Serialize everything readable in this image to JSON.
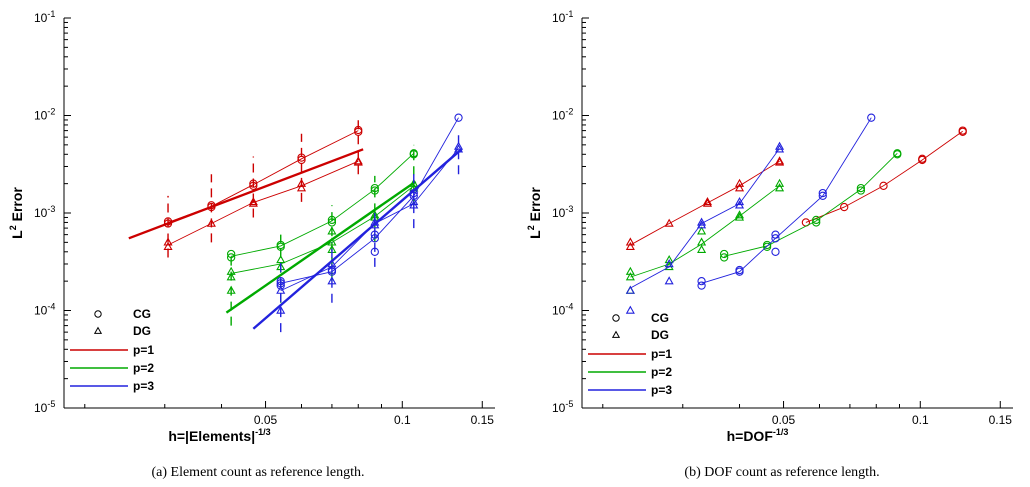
{
  "chart_data": [
    {
      "type": "scatter",
      "caption": "(a)  Element count as reference length.",
      "xlabel": "h=|Elements|",
      "xlabel_sup": "-1/3",
      "ylabel": "L",
      "ylabel_sup": "2",
      "ylabel_rest": " Error",
      "x_scale": "log",
      "y_scale": "log",
      "xlim": [
        0.018,
        0.16
      ],
      "ylim": [
        1e-05,
        0.1
      ],
      "x_ticks": [
        {
          "v": 0.05,
          "label": "0.05"
        },
        {
          "v": 0.1,
          "label": "0.1"
        },
        {
          "v": 0.15,
          "label": "0.15"
        }
      ],
      "y_ticks": [
        {
          "v": 0.1,
          "base": "10",
          "exp": "-1"
        },
        {
          "v": 0.01,
          "base": "10",
          "exp": "-2"
        },
        {
          "v": 0.001,
          "base": "10",
          "exp": "-3"
        },
        {
          "v": 0.0001,
          "base": "10",
          "exp": "-4"
        },
        {
          "v": 1e-05,
          "base": "10",
          "exp": "-5"
        }
      ],
      "legend": {
        "position": "bottom-left",
        "markers": [
          {
            "symbol": "circle",
            "label": "CG"
          },
          {
            "symbol": "triangle",
            "label": "DG"
          }
        ],
        "lines": [
          {
            "label": "p=1",
            "color": "#cc0000"
          },
          {
            "label": "p=2",
            "color": "#00aa00"
          },
          {
            "label": "p=3",
            "color": "#2222dd"
          }
        ]
      },
      "series": [
        {
          "p": 1,
          "color": "#cc0000",
          "fit": [
            [
              0.025,
              0.00055
            ],
            [
              0.082,
              0.0045
            ]
          ],
          "cg": [
            [
              0.0305,
              0.00082
            ],
            [
              0.0305,
              0.00078
            ],
            [
              0.038,
              0.00115
            ],
            [
              0.038,
              0.0012
            ],
            [
              0.047,
              0.0019
            ],
            [
              0.047,
              0.002
            ],
            [
              0.06,
              0.0035
            ],
            [
              0.06,
              0.0037
            ],
            [
              0.08,
              0.0068
            ],
            [
              0.08,
              0.0071
            ]
          ],
          "dg": [
            [
              0.0305,
              0.00045
            ],
            [
              0.0305,
              0.0005
            ],
            [
              0.038,
              0.00078
            ],
            [
              0.047,
              0.0013
            ],
            [
              0.047,
              0.00125
            ],
            [
              0.06,
              0.002
            ],
            [
              0.06,
              0.0018
            ],
            [
              0.08,
              0.0034
            ],
            [
              0.08,
              0.0033
            ]
          ],
          "cg_curve": [
            [
              0.0305,
              0.0008
            ],
            [
              0.038,
              0.00117
            ],
            [
              0.047,
              0.00195
            ],
            [
              0.06,
              0.0036
            ],
            [
              0.08,
              0.007
            ]
          ],
          "dg_curve": [
            [
              0.0305,
              0.00047
            ],
            [
              0.038,
              0.00078
            ],
            [
              0.047,
              0.00128
            ],
            [
              0.06,
              0.0019
            ],
            [
              0.08,
              0.0034
            ]
          ],
          "whiskers": [
            [
              0.0305,
              0.00035,
              0.0015
            ],
            [
              0.038,
              0.0005,
              0.0025
            ],
            [
              0.047,
              0.0009,
              0.0038
            ],
            [
              0.06,
              0.0013,
              0.0065
            ],
            [
              0.08,
              0.0025,
              0.01
            ]
          ]
        },
        {
          "p": 2,
          "color": "#00aa00",
          "fit": [
            [
              0.041,
              9.5e-05
            ],
            [
              0.107,
              0.0021
            ]
          ],
          "cg": [
            [
              0.042,
              0.00038
            ],
            [
              0.042,
              0.00035
            ],
            [
              0.054,
              0.00045
            ],
            [
              0.054,
              0.00047
            ],
            [
              0.07,
              0.00085
            ],
            [
              0.07,
              0.0008
            ],
            [
              0.087,
              0.0017
            ],
            [
              0.087,
              0.0018
            ],
            [
              0.106,
              0.0041
            ],
            [
              0.106,
              0.004
            ]
          ],
          "dg": [
            [
              0.042,
              0.00025
            ],
            [
              0.042,
              0.00022
            ],
            [
              0.042,
              0.00016
            ],
            [
              0.054,
              0.00033
            ],
            [
              0.054,
              0.00028
            ],
            [
              0.07,
              0.00065
            ],
            [
              0.07,
              0.0005
            ],
            [
              0.07,
              0.00042
            ],
            [
              0.087,
              0.0009
            ],
            [
              0.087,
              0.00095
            ],
            [
              0.106,
              0.002
            ],
            [
              0.106,
              0.0018
            ]
          ],
          "cg_curve": [
            [
              0.042,
              0.00036
            ],
            [
              0.054,
              0.00046
            ],
            [
              0.07,
              0.00083
            ],
            [
              0.087,
              0.00175
            ],
            [
              0.106,
              0.0041
            ]
          ],
          "dg_curve": [
            [
              0.042,
              0.00024
            ],
            [
              0.054,
              0.0003
            ],
            [
              0.07,
              0.0005
            ],
            [
              0.087,
              0.00092
            ],
            [
              0.106,
              0.0019
            ]
          ],
          "whiskers": [
            [
              0.042,
              7e-05,
              0.0004
            ],
            [
              0.054,
              0.00012,
              0.0006
            ],
            [
              0.07,
              0.0002,
              0.0012
            ],
            [
              0.087,
              0.0005,
              0.0024
            ],
            [
              0.106,
              0.0012,
              0.005
            ]
          ]
        },
        {
          "p": 3,
          "color": "#2222dd",
          "fit": [
            [
              0.047,
              6.5e-05
            ],
            [
              0.135,
              0.0045
            ]
          ],
          "cg": [
            [
              0.054,
              0.0002
            ],
            [
              0.054,
              0.00019
            ],
            [
              0.054,
              0.00018
            ],
            [
              0.07,
              0.00026
            ],
            [
              0.07,
              0.00025
            ],
            [
              0.087,
              0.0006
            ],
            [
              0.087,
              0.00055
            ],
            [
              0.087,
              0.0004
            ],
            [
              0.106,
              0.0016
            ],
            [
              0.106,
              0.0015
            ],
            [
              0.133,
              0.0095
            ]
          ],
          "dg": [
            [
              0.054,
              0.0001
            ],
            [
              0.054,
              0.00016
            ],
            [
              0.07,
              0.0002
            ],
            [
              0.07,
              0.0003
            ],
            [
              0.087,
              0.00075
            ],
            [
              0.087,
              0.0008
            ],
            [
              0.106,
              0.0012
            ],
            [
              0.106,
              0.0013
            ],
            [
              0.133,
              0.0048
            ],
            [
              0.133,
              0.0045
            ]
          ],
          "cg_curve": [
            [
              0.054,
              0.00019
            ],
            [
              0.07,
              0.00025
            ],
            [
              0.087,
              0.00055
            ],
            [
              0.106,
              0.0015
            ],
            [
              0.133,
              0.0095
            ]
          ],
          "dg_curve": [
            [
              0.054,
              0.00016
            ],
            [
              0.07,
              0.00028
            ],
            [
              0.087,
              0.00078
            ],
            [
              0.106,
              0.00125
            ],
            [
              0.133,
              0.0046
            ]
          ],
          "whiskers": [
            [
              0.054,
              6e-05,
              0.00033
            ],
            [
              0.07,
              0.00012,
              0.0005
            ],
            [
              0.087,
              0.00028,
              0.0011
            ],
            [
              0.106,
              0.0007,
              0.0028
            ],
            [
              0.133,
              0.0025,
              0.0065
            ]
          ]
        }
      ]
    },
    {
      "type": "scatter",
      "caption": "(b)  DOF count as reference length.",
      "xlabel": "h=DOF",
      "xlabel_sup": "-1/3",
      "ylabel": "L",
      "ylabel_sup": "2",
      "ylabel_rest": " Error",
      "x_scale": "log",
      "y_scale": "log",
      "xlim": [
        0.018,
        0.16
      ],
      "ylim": [
        1e-05,
        0.1
      ],
      "x_ticks": [
        {
          "v": 0.05,
          "label": "0.05"
        },
        {
          "v": 0.1,
          "label": "0.1"
        },
        {
          "v": 0.15,
          "label": "0.15"
        }
      ],
      "y_ticks": [
        {
          "v": 0.1,
          "base": "10",
          "exp": "-1"
        },
        {
          "v": 0.01,
          "base": "10",
          "exp": "-2"
        },
        {
          "v": 0.001,
          "base": "10",
          "exp": "-3"
        },
        {
          "v": 0.0001,
          "base": "10",
          "exp": "-4"
        },
        {
          "v": 1e-05,
          "base": "10",
          "exp": "-5"
        }
      ],
      "legend": {
        "position": "bottom-left",
        "markers": [
          {
            "symbol": "circle",
            "label": "CG"
          },
          {
            "symbol": "triangle",
            "label": "DG"
          }
        ],
        "lines": [
          {
            "label": "p=1",
            "color": "#cc0000"
          },
          {
            "label": "p=2",
            "color": "#00aa00"
          },
          {
            "label": "p=3",
            "color": "#2222dd"
          }
        ]
      },
      "series": [
        {
          "p": 1,
          "color": "#cc0000",
          "cg": [
            [
              0.056,
              0.0008
            ],
            [
              0.068,
              0.00115
            ],
            [
              0.083,
              0.0019
            ],
            [
              0.101,
              0.0035
            ],
            [
              0.101,
              0.0036
            ],
            [
              0.124,
              0.0068
            ],
            [
              0.124,
              0.007
            ]
          ],
          "dg": [
            [
              0.023,
              0.00045
            ],
            [
              0.023,
              0.0005
            ],
            [
              0.028,
              0.00078
            ],
            [
              0.034,
              0.00125
            ],
            [
              0.034,
              0.0013
            ],
            [
              0.04,
              0.0018
            ],
            [
              0.04,
              0.002
            ],
            [
              0.049,
              0.0033
            ],
            [
              0.049,
              0.0034
            ]
          ],
          "cg_curve": [
            [
              0.056,
              0.0008
            ],
            [
              0.068,
              0.00115
            ],
            [
              0.083,
              0.0019
            ],
            [
              0.101,
              0.0035
            ],
            [
              0.124,
              0.0069
            ]
          ],
          "dg_curve": [
            [
              0.023,
              0.00047
            ],
            [
              0.028,
              0.00078
            ],
            [
              0.034,
              0.00127
            ],
            [
              0.04,
              0.0019
            ],
            [
              0.049,
              0.0034
            ]
          ]
        },
        {
          "p": 2,
          "color": "#00aa00",
          "cg": [
            [
              0.037,
              0.00035
            ],
            [
              0.037,
              0.00038
            ],
            [
              0.046,
              0.00045
            ],
            [
              0.046,
              0.00047
            ],
            [
              0.059,
              0.0008
            ],
            [
              0.059,
              0.00085
            ],
            [
              0.074,
              0.0017
            ],
            [
              0.074,
              0.0018
            ],
            [
              0.089,
              0.004
            ],
            [
              0.089,
              0.0041
            ]
          ],
          "dg": [
            [
              0.023,
              0.00016
            ],
            [
              0.023,
              0.00022
            ],
            [
              0.023,
              0.00025
            ],
            [
              0.028,
              0.00028
            ],
            [
              0.028,
              0.00033
            ],
            [
              0.033,
              0.00042
            ],
            [
              0.033,
              0.0005
            ],
            [
              0.033,
              0.00065
            ],
            [
              0.04,
              0.0009
            ],
            [
              0.04,
              0.00095
            ],
            [
              0.049,
              0.0018
            ],
            [
              0.049,
              0.002
            ]
          ],
          "cg_curve": [
            [
              0.037,
              0.00036
            ],
            [
              0.046,
              0.00046
            ],
            [
              0.059,
              0.00083
            ],
            [
              0.074,
              0.00175
            ],
            [
              0.089,
              0.0041
            ]
          ],
          "dg_curve": [
            [
              0.023,
              0.00022
            ],
            [
              0.028,
              0.0003
            ],
            [
              0.033,
              0.00048
            ],
            [
              0.04,
              0.00093
            ],
            [
              0.049,
              0.0019
            ]
          ]
        },
        {
          "p": 3,
          "color": "#2222dd",
          "cg": [
            [
              0.033,
              0.00018
            ],
            [
              0.033,
              0.0002
            ],
            [
              0.04,
              0.00025
            ],
            [
              0.04,
              0.00026
            ],
            [
              0.048,
              0.0004
            ],
            [
              0.048,
              0.00055
            ],
            [
              0.048,
              0.0006
            ],
            [
              0.061,
              0.0015
            ],
            [
              0.061,
              0.0016
            ],
            [
              0.078,
              0.0095
            ]
          ],
          "dg": [
            [
              0.023,
              0.0001
            ],
            [
              0.023,
              0.00016
            ],
            [
              0.028,
              0.0002
            ],
            [
              0.028,
              0.0003
            ],
            [
              0.033,
              0.00075
            ],
            [
              0.033,
              0.0008
            ],
            [
              0.04,
              0.0012
            ],
            [
              0.04,
              0.0013
            ],
            [
              0.049,
              0.0045
            ],
            [
              0.049,
              0.0048
            ]
          ],
          "cg_curve": [
            [
              0.033,
              0.00019
            ],
            [
              0.04,
              0.00025
            ],
            [
              0.048,
              0.00055
            ],
            [
              0.061,
              0.0015
            ],
            [
              0.078,
              0.0095
            ]
          ],
          "dg_curve": [
            [
              0.023,
              0.00017
            ],
            [
              0.028,
              0.00028
            ],
            [
              0.033,
              0.00078
            ],
            [
              0.04,
              0.00125
            ],
            [
              0.049,
              0.0046
            ]
          ]
        }
      ]
    }
  ]
}
